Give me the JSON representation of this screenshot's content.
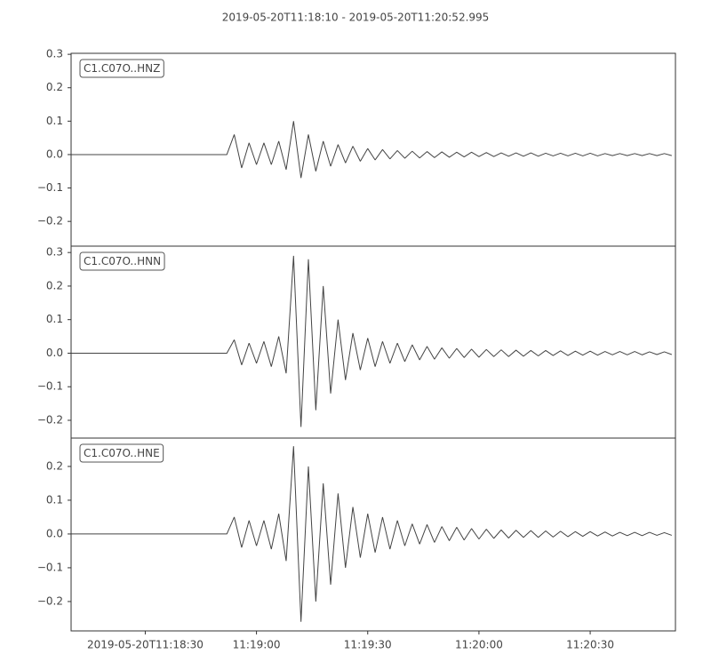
{
  "chart_data": {
    "type": "line",
    "title": "2019-05-20T11:18:10  -  2019-05-20T11:20:52.995",
    "xlim": [
      0,
      162.995
    ],
    "xticks": [
      {
        "value": 20,
        "label": "2019-05-20T11:18:30"
      },
      {
        "value": 50,
        "label": "11:19:00"
      },
      {
        "value": 80,
        "label": "11:19:30"
      },
      {
        "value": 110,
        "label": "11:20:00"
      },
      {
        "value": 140,
        "label": "11:20:30"
      }
    ],
    "x": [
      0,
      2,
      4,
      6,
      8,
      10,
      12,
      14,
      16,
      18,
      20,
      22,
      24,
      26,
      28,
      30,
      32,
      34,
      36,
      38,
      40,
      42,
      44,
      46,
      48,
      50,
      52,
      54,
      56,
      58,
      60,
      62,
      64,
      66,
      68,
      70,
      72,
      74,
      76,
      78,
      80,
      82,
      84,
      86,
      88,
      90,
      92,
      94,
      96,
      98,
      100,
      102,
      104,
      106,
      108,
      110,
      112,
      114,
      116,
      118,
      120,
      122,
      124,
      126,
      128,
      130,
      132,
      134,
      136,
      138,
      140,
      142,
      144,
      146,
      148,
      150,
      152,
      154,
      156,
      158,
      160,
      162
    ],
    "series": [
      {
        "name": "C1.C07O..HNZ",
        "color": "#444444",
        "ylim": [
          -0.274,
          0.303
        ],
        "yticks": [
          {
            "value": -0.2,
            "label": "−0.2"
          },
          {
            "value": -0.1,
            "label": "−0.1"
          },
          {
            "value": 0,
            "label": "0.0"
          },
          0.1,
          0.2,
          0.3
        ],
        "values": [
          0,
          0,
          0,
          0,
          0,
          0,
          0,
          0,
          0,
          0,
          0,
          0,
          0,
          0,
          0,
          0,
          0,
          0,
          0,
          0,
          0,
          0,
          0.06,
          -0.04,
          0.035,
          -0.03,
          0.035,
          -0.03,
          0.04,
          -0.045,
          0.1,
          -0.07,
          0.06,
          -0.05,
          0.04,
          -0.035,
          0.03,
          -0.025,
          0.025,
          -0.02,
          0.018,
          -0.016,
          0.015,
          -0.013,
          0.012,
          -0.011,
          0.01,
          -0.01,
          0.009,
          -0.009,
          0.008,
          -0.008,
          0.007,
          -0.007,
          0.007,
          -0.006,
          0.006,
          -0.006,
          0.005,
          -0.005,
          0.005,
          -0.005,
          0.005,
          -0.005,
          0.004,
          -0.004,
          0.004,
          -0.004,
          0.004,
          -0.004,
          0.004,
          -0.004,
          0.003,
          -0.003,
          0.003,
          -0.003,
          0.003,
          -0.003,
          0.003,
          -0.003,
          0.003,
          -0.003
        ]
      },
      {
        "name": "C1.C07O..HNN",
        "color": "#444444",
        "ylim": [
          -0.253,
          0.319
        ],
        "yticks": [
          {
            "value": -0.2,
            "label": "−0.2"
          },
          {
            "value": -0.1,
            "label": "−0.1"
          },
          {
            "value": 0,
            "label": "0.0"
          },
          0.1,
          0.2,
          0.3
        ],
        "values": [
          0,
          0,
          0,
          0,
          0,
          0,
          0,
          0,
          0,
          0,
          0,
          0,
          0,
          0,
          0,
          0,
          0,
          0,
          0,
          0,
          0,
          0,
          0.04,
          -0.035,
          0.03,
          -0.03,
          0.035,
          -0.04,
          0.05,
          -0.06,
          0.29,
          -0.22,
          0.28,
          -0.17,
          0.2,
          -0.12,
          0.1,
          -0.08,
          0.06,
          -0.05,
          0.045,
          -0.04,
          0.035,
          -0.03,
          0.03,
          -0.025,
          0.025,
          -0.02,
          0.02,
          -0.018,
          0.016,
          -0.015,
          0.014,
          -0.013,
          0.012,
          -0.012,
          0.011,
          -0.01,
          0.01,
          -0.01,
          0.009,
          -0.009,
          0.008,
          -0.008,
          0.008,
          -0.007,
          0.007,
          -0.007,
          0.006,
          -0.006,
          0.006,
          -0.006,
          0.005,
          -0.005,
          0.005,
          -0.005,
          0.005,
          -0.005,
          0.004,
          -0.004,
          0.004,
          -0.004
        ]
      },
      {
        "name": "C1.C07O..HNE",
        "color": "#444444",
        "ylim": [
          -0.287,
          0.284
        ],
        "yticks": [
          {
            "value": -0.2,
            "label": "−0.2"
          },
          {
            "value": -0.1,
            "label": "−0.1"
          },
          {
            "value": 0,
            "label": "0.0"
          },
          0.1,
          0.2
        ],
        "values": [
          0,
          0,
          0,
          0,
          0,
          0,
          0,
          0,
          0,
          0,
          0,
          0,
          0,
          0,
          0,
          0,
          0,
          0,
          0,
          0,
          0,
          0,
          0.05,
          -0.04,
          0.04,
          -0.035,
          0.04,
          -0.045,
          0.06,
          -0.08,
          0.26,
          -0.26,
          0.2,
          -0.2,
          0.15,
          -0.15,
          0.12,
          -0.1,
          0.08,
          -0.07,
          0.06,
          -0.055,
          0.05,
          -0.045,
          0.04,
          -0.035,
          0.03,
          -0.03,
          0.028,
          -0.025,
          0.022,
          -0.02,
          0.02,
          -0.018,
          0.016,
          -0.015,
          0.014,
          -0.013,
          0.012,
          -0.012,
          0.011,
          -0.01,
          0.01,
          -0.01,
          0.009,
          -0.009,
          0.008,
          -0.008,
          0.007,
          -0.007,
          0.007,
          -0.006,
          0.006,
          -0.006,
          0.005,
          -0.005,
          0.005,
          -0.005,
          0.005,
          -0.004,
          0.004,
          -0.004
        ]
      }
    ]
  }
}
